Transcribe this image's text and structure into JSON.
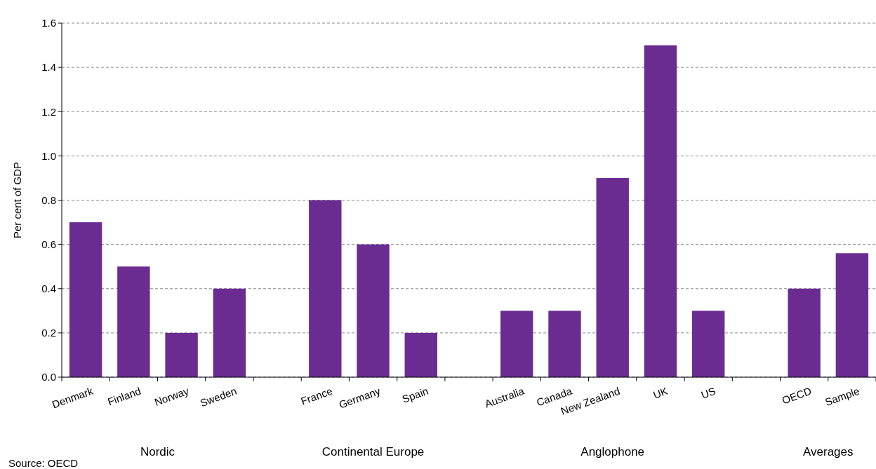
{
  "chart_data": {
    "type": "bar",
    "ylabel": "Per cent of GDP",
    "categories": [
      "Denmark",
      "Finland",
      "Norway",
      "Sweden",
      null,
      "France",
      "Germany",
      "Spain",
      null,
      "Australia",
      "Canada",
      "New Zealand",
      "UK",
      "US",
      null,
      "OECD",
      "Sample"
    ],
    "values": [
      0.7,
      0.5,
      0.2,
      0.4,
      null,
      0.8,
      0.6,
      0.2,
      null,
      0.3,
      0.3,
      0.9,
      1.5,
      0.3,
      null,
      0.4,
      0.56
    ],
    "color": "#6a2c91",
    "ylim": [
      0,
      1.6
    ],
    "yticks": [
      {
        "value": 0,
        "label": "0.0"
      },
      {
        "value": 0.2,
        "label": "0.2"
      },
      {
        "value": 0.4,
        "label": "0.4"
      },
      {
        "value": 0.6,
        "label": "0.6"
      },
      {
        "value": 0.8,
        "label": "0.8"
      },
      {
        "value": 1,
        "label": "1.0"
      },
      {
        "value": 1.2,
        "label": "1.2"
      },
      {
        "value": 1.4,
        "label": "1.4"
      },
      {
        "value": 1.6,
        "label": "1.6"
      }
    ],
    "grid": "y",
    "annotations": [
      "Nordic",
      "Continental Europe",
      "Anglophone",
      "Averages",
      "Source: OECD"
    ]
  }
}
